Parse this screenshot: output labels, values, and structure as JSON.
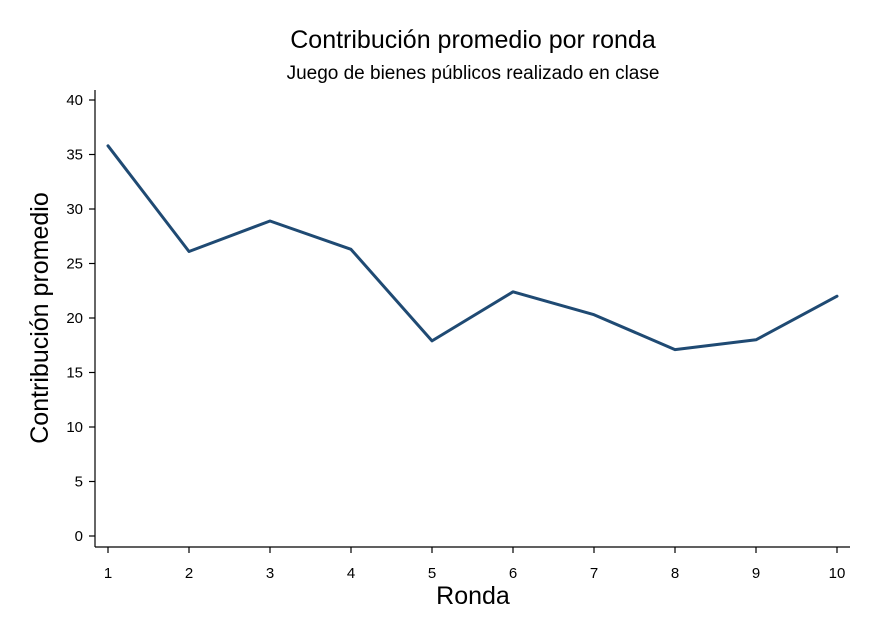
{
  "chart_data": {
    "type": "line",
    "title": "Contribución promedio por ronda",
    "subtitle": "Juego de bienes públicos realizado en clase",
    "xlabel": "Ronda",
    "ylabel": "Contribución promedio",
    "x": [
      1,
      2,
      3,
      4,
      5,
      6,
      7,
      8,
      9,
      10
    ],
    "x_ticks": [
      "1",
      "2",
      "3",
      "4",
      "5",
      "6",
      "7",
      "8",
      "9",
      "10"
    ],
    "y_ticks": [
      "0",
      "5",
      "10",
      "15",
      "20",
      "25",
      "30",
      "35",
      "40"
    ],
    "ylim": [
      0,
      40
    ],
    "xlim": [
      1,
      10
    ],
    "series": [
      {
        "values": [
          35.8,
          26.1,
          28.9,
          26.3,
          17.9,
          22.4,
          20.3,
          17.1,
          18.0,
          22.0
        ]
      }
    ],
    "grid": false,
    "line_color": "#1f4a73"
  }
}
